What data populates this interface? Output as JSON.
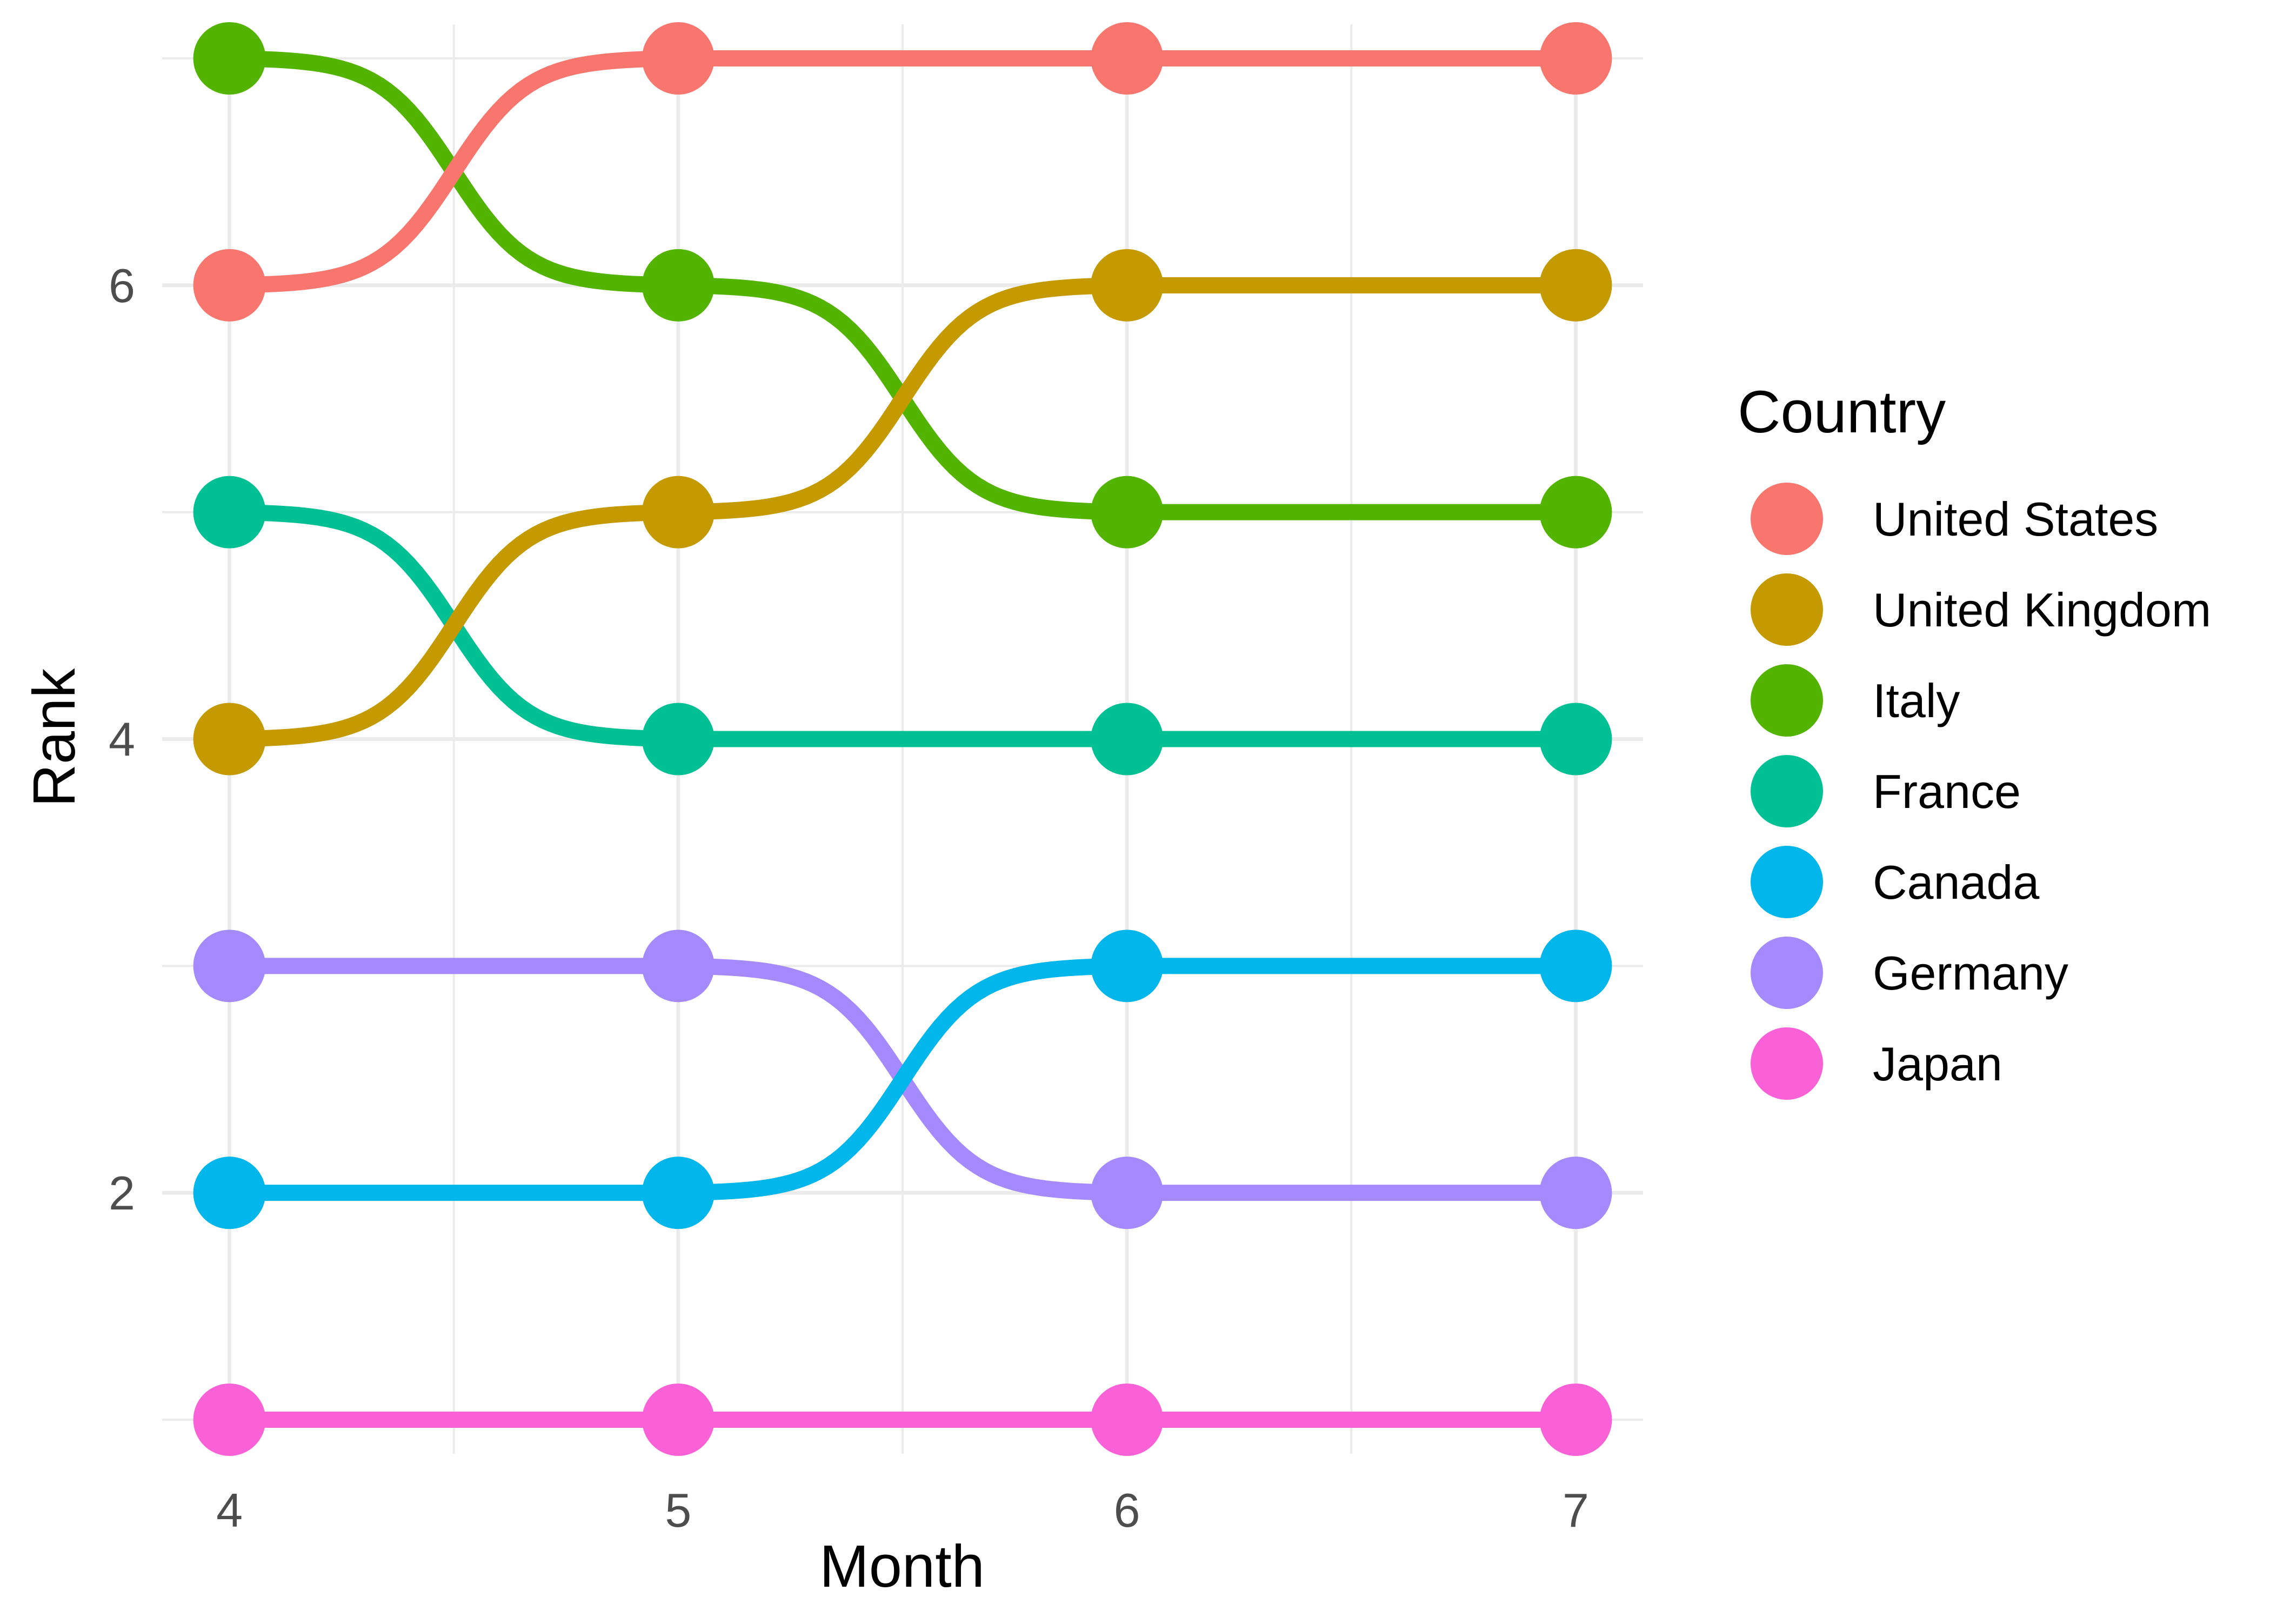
{
  "chart_data": {
    "type": "line",
    "subtype": "bump",
    "title": "",
    "xlabel": "Month",
    "ylabel": "Rank",
    "x": [
      4,
      5,
      6,
      7
    ],
    "xlim": [
      3.85,
      7.15
    ],
    "ylim": [
      0.85,
      7.15
    ],
    "x_ticks": [
      4,
      5,
      6,
      7
    ],
    "y_ticks": [
      2,
      4,
      6
    ],
    "grid": true,
    "legend": {
      "title": "Country",
      "position": "right"
    },
    "series": [
      {
        "name": "United States",
        "color": "#F8766D",
        "values": [
          6,
          7,
          7,
          7
        ]
      },
      {
        "name": "United Kingdom",
        "color": "#C49A00",
        "values": [
          4,
          5,
          6,
          6
        ]
      },
      {
        "name": "Italy",
        "color": "#53B400",
        "values": [
          7,
          6,
          5,
          5
        ]
      },
      {
        "name": "France",
        "color": "#00C094",
        "values": [
          5,
          4,
          4,
          4
        ]
      },
      {
        "name": "Canada",
        "color": "#00B6EB",
        "values": [
          2,
          2,
          3,
          3
        ]
      },
      {
        "name": "Germany",
        "color": "#A58AFF",
        "values": [
          3,
          3,
          2,
          2
        ]
      },
      {
        "name": "Japan",
        "color": "#FB61D7",
        "values": [
          1,
          1,
          1,
          1
        ]
      }
    ]
  }
}
